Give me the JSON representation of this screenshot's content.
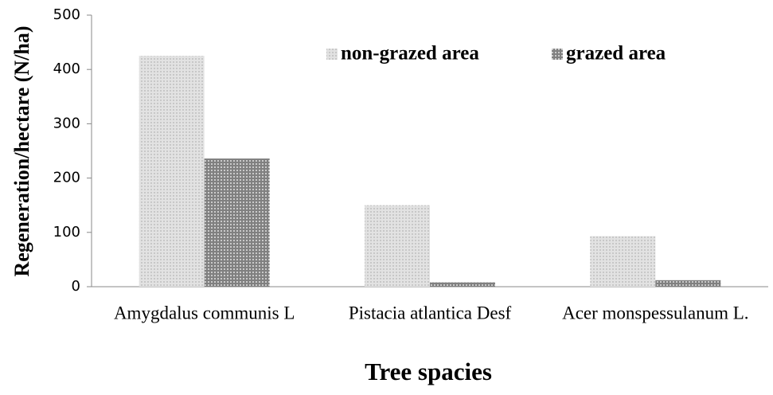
{
  "chart_data": {
    "type": "bar",
    "categories": [
      "Amygdalus communis L",
      "Pistacia atlantica Desf",
      "Acer monspessulanum L."
    ],
    "series": [
      {
        "name": "non-grazed area",
        "color": "#e2e2e2",
        "values": [
          425,
          150,
          93
        ]
      },
      {
        "name": "grazed area",
        "color": "#808080",
        "values": [
          236,
          8,
          12
        ]
      }
    ],
    "ylim": [
      0,
      500
    ],
    "yticks": [
      0,
      100,
      200,
      300,
      400,
      500
    ],
    "x_label": "Tree spacies",
    "y_label": "Regeneration/hectare (N/ha)"
  }
}
